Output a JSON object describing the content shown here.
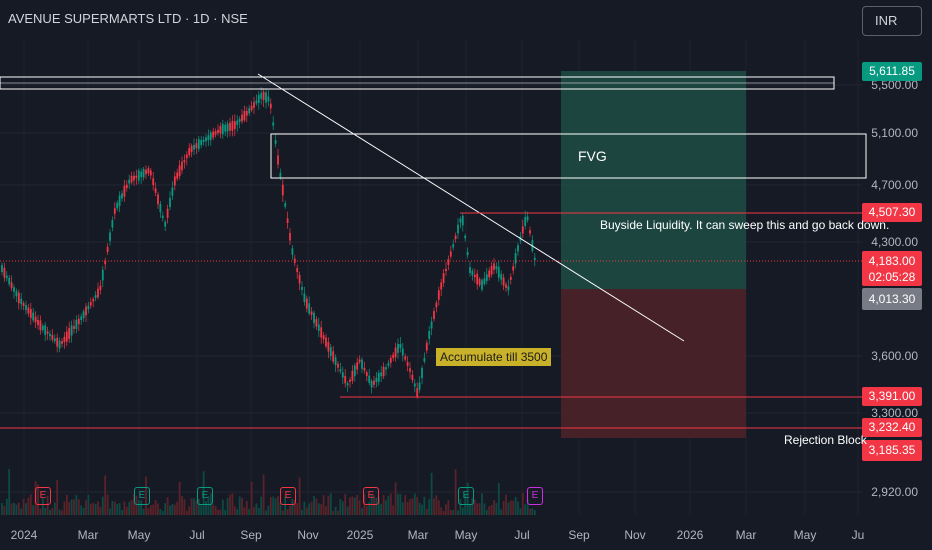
{
  "header": {
    "title": "AVENUE SUPERMARTS LTD · 1D · NSE",
    "currency": "INR"
  },
  "yaxis": {
    "ticks": [
      "5,500.00",
      "5,100.00",
      "4,700.00",
      "4,300.00",
      "3,600.00",
      "3,300.00",
      "2,920.00"
    ]
  },
  "xaxis": {
    "ticks": [
      "2024",
      "Mar",
      "May",
      "Jul",
      "Sep",
      "Nov",
      "2025",
      "Mar",
      "May",
      "Jul",
      "Sep",
      "Nov",
      "2026",
      "Mar",
      "May",
      "Ju"
    ]
  },
  "price_badges": {
    "target": "5,611.85",
    "liquidity": "4,507.30",
    "current": "4,183.00",
    "countdown": "02:05:28",
    "entry": "4,013.30",
    "support": "3,391.00",
    "stop": "3,232.40",
    "rejection": "3,185.35"
  },
  "annotations": {
    "fvg": "FVG",
    "buyside": "Buyside Liquidity. It can sweep this and go back down.",
    "accumulate": "Accumulate till 3500",
    "rejection_block": "Rejection Block"
  },
  "earnings_markers": [
    {
      "label": "E",
      "color": "#f23645"
    },
    {
      "label": "E",
      "color": "#089981"
    },
    {
      "label": "E",
      "color": "#089981"
    },
    {
      "label": "E",
      "color": "#f23645"
    },
    {
      "label": "E",
      "color": "#f23645"
    },
    {
      "label": "E",
      "color": "#089981"
    },
    {
      "label": "E",
      "color": "#cc2ee0"
    }
  ],
  "colors": {
    "up": "#089981",
    "down": "#f23645",
    "background": "#161a25"
  }
}
